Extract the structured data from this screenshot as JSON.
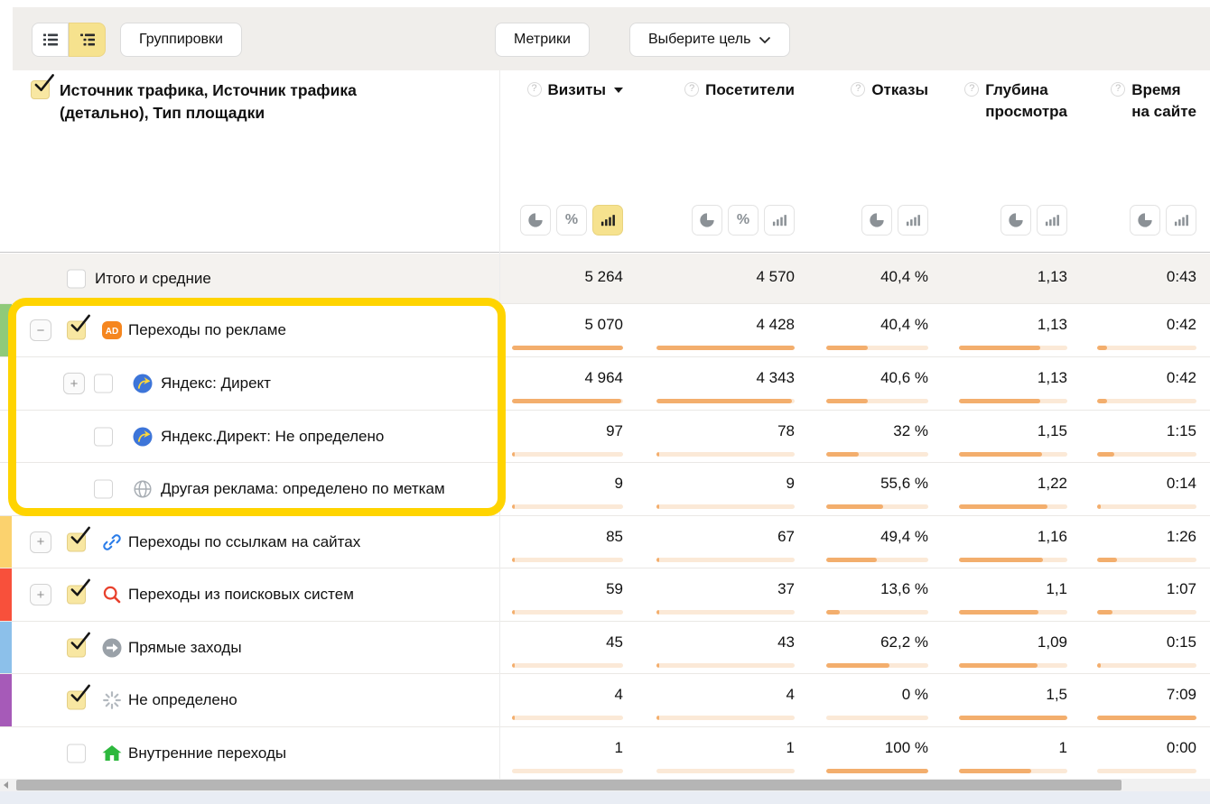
{
  "toolbar": {
    "view_toggles": {
      "flat": "flat-list-view",
      "tree": "tree-list-view",
      "selected": "tree"
    },
    "groupings_label": "Группировки",
    "metrics_label": "Метрики",
    "goal_label": "Выберите цель"
  },
  "icons": {
    "percent": "%"
  },
  "table": {
    "dimension_header": "Источник трафика, Источник трафика\n(детально), Тип площадки",
    "dimension_checkbox_checked": true,
    "columns": [
      {
        "label": "Визиты",
        "sorted": true,
        "toggles": [
          "pie",
          "percent",
          "bars"
        ],
        "selected_toggle": "bars"
      },
      {
        "label": "Посетители",
        "sorted": false,
        "toggles": [
          "pie",
          "percent",
          "bars"
        ],
        "selected_toggle": null
      },
      {
        "label": "Отказы",
        "sorted": false,
        "toggles": [
          "pie",
          "bars"
        ],
        "selected_toggle": null
      },
      {
        "label": "Глубина\nпросмотра",
        "sorted": false,
        "toggles": [
          "pie",
          "bars"
        ],
        "selected_toggle": null
      },
      {
        "label": "Время\nна сайте",
        "sorted": false,
        "toggles": [
          "pie",
          "bars"
        ],
        "selected_toggle": null
      }
    ],
    "rows": [
      {
        "label": "Итого и средние",
        "total": true,
        "level": 0,
        "expander": null,
        "checked": false,
        "icon": null,
        "strip": null,
        "values": [
          "5 264",
          "4 570",
          "40,4 %",
          "1,13",
          "0:43"
        ],
        "bars": null
      },
      {
        "label": "Переходы по рекламе",
        "total": false,
        "level": 0,
        "expander": "minus",
        "checked": true,
        "icon": "ad-icon",
        "strip": "#8fca7a",
        "highlighted": true,
        "values": [
          "5 070",
          "4 428",
          "40,4 %",
          "1,13",
          "0:42"
        ],
        "bars": [
          100,
          100,
          40.4,
          75,
          9.8
        ]
      },
      {
        "label": "Яндекс: Директ",
        "total": false,
        "level": 1,
        "expander": "plus",
        "checked": false,
        "icon": "yandex-direct-icon",
        "strip": null,
        "highlighted": true,
        "values": [
          "4 964",
          "4 343",
          "40,6 %",
          "1,13",
          "0:42"
        ],
        "bars": [
          98,
          98,
          40.6,
          75,
          9.8
        ]
      },
      {
        "label": "Яндекс.Директ: Не определено",
        "total": false,
        "level": 1,
        "expander": null,
        "checked": false,
        "icon": "yandex-direct-icon",
        "strip": null,
        "highlighted": true,
        "values": [
          "97",
          "78",
          "32 %",
          "1,15",
          "1:15"
        ],
        "bars": [
          2,
          2,
          32,
          76.7,
          17.5
        ]
      },
      {
        "label": "Другая реклама: определено по меткам",
        "total": false,
        "level": 1,
        "expander": null,
        "checked": false,
        "icon": "globe-icon",
        "strip": null,
        "highlighted": true,
        "values": [
          "9",
          "9",
          "55,6 %",
          "1,22",
          "0:14"
        ],
        "bars": [
          1,
          1,
          55.6,
          81.3,
          3.3
        ]
      },
      {
        "label": "Переходы по ссылкам на сайтах",
        "total": false,
        "level": 0,
        "expander": "plus",
        "checked": true,
        "icon": "link-icon",
        "strip": "#fbd26e",
        "highlighted": false,
        "values": [
          "85",
          "67",
          "49,4 %",
          "1,16",
          "1:26"
        ],
        "bars": [
          2,
          1.5,
          49.4,
          77.3,
          20
        ]
      },
      {
        "label": "Переходы из поисковых систем",
        "total": false,
        "level": 0,
        "expander": "plus",
        "checked": true,
        "icon": "search-icon",
        "strip": "#f8503b",
        "highlighted": false,
        "values": [
          "59",
          "37",
          "13,6 %",
          "1,1",
          "1:07"
        ],
        "bars": [
          1.5,
          1,
          13.6,
          73.3,
          15.6
        ]
      },
      {
        "label": "Прямые заходы",
        "total": false,
        "level": 0,
        "expander": null,
        "checked": true,
        "icon": "direct-icon",
        "strip": "#8cc0ea",
        "highlighted": false,
        "values": [
          "45",
          "43",
          "62,2 %",
          "1,09",
          "0:15"
        ],
        "bars": [
          1,
          1,
          62.2,
          72.7,
          3.5
        ]
      },
      {
        "label": "Не определено",
        "total": false,
        "level": 0,
        "expander": null,
        "checked": true,
        "icon": "undefined-icon",
        "strip": "#a65ab8",
        "highlighted": false,
        "values": [
          "4",
          "4",
          "0 %",
          "1,5",
          "7:09"
        ],
        "bars": [
          0.5,
          0.5,
          0,
          100,
          100
        ]
      },
      {
        "label": "Внутренние переходы",
        "total": false,
        "level": 0,
        "expander": null,
        "checked": false,
        "icon": "home-icon",
        "strip": null,
        "highlighted": false,
        "values": [
          "1",
          "1",
          "100 %",
          "1",
          "0:00"
        ],
        "bars": [
          0,
          0,
          100,
          66.7,
          0
        ]
      }
    ]
  },
  "scrollbar": {
    "orientation": "horizontal"
  },
  "colors": {
    "highlight_box": "#ffd400",
    "bar_fill": "#f3ae6d",
    "bar_track": "#fbe9d7",
    "checkbox_checked": "#f8e7a2",
    "toggle_selected": "#f6e28e",
    "total_row_bg": "#f4f2ef",
    "toolbar_bg": "#f0eeeb",
    "bottom_band": "#e9edf4",
    "strip_ad": "#8fca7a",
    "strip_links": "#fbd26e",
    "strip_search": "#f8503b",
    "strip_direct": "#8cc0ea",
    "strip_undefined": "#a65ab8"
  }
}
